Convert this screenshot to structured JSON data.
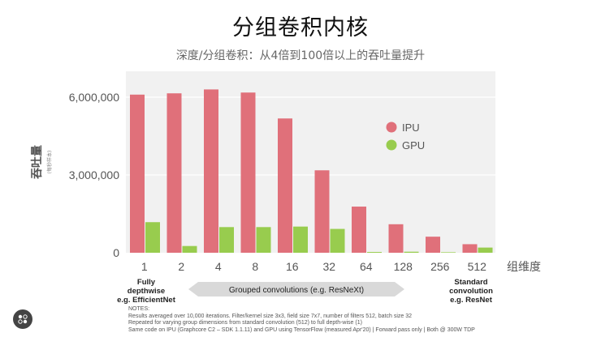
{
  "title": "分组卷积内核",
  "subtitle": "深度/分组卷积：从4倍到100倍以上的吞吐量提升",
  "chart_data": {
    "type": "bar",
    "categories": [
      "1",
      "2",
      "4",
      "8",
      "16",
      "32",
      "64",
      "128",
      "256",
      "512"
    ],
    "series": [
      {
        "name": "IPU",
        "values": [
          6100000,
          6150000,
          6300000,
          6180000,
          5180000,
          3180000,
          1780000,
          1100000,
          620000,
          330000
        ],
        "color": "#e0707a"
      },
      {
        "name": "GPU",
        "values": [
          1180000,
          260000,
          990000,
          990000,
          1010000,
          920000,
          30000,
          40000,
          20000,
          200000
        ],
        "color": "#98cc4e"
      }
    ],
    "ylim": [
      0,
      7000000
    ],
    "yticks": [
      0,
      3000000,
      6000000
    ],
    "ytick_labels": [
      "0",
      "3,000,000",
      "6,000,000"
    ],
    "ylabel": "吞吐量",
    "ylabel_unit": "(每秒样本)",
    "xlabel": "组维度",
    "legend_position": "right",
    "grid": true
  },
  "annotations": {
    "left": "Fully\ndepthwise\ne.g. EfficientNet",
    "middle": "Grouped convolutions (e.g. ResNeXt)",
    "right": "Standard\nconvolution\ne.g. ResNet"
  },
  "notes": [
    "NOTES:",
    "Results averaged over 10,000 iterations. Filter/kernel size 3x3, field size 7x7, number of filters 512, batch size 32",
    "Repeated for varying group dimensions from standard convolution (512) to full depth-wise (1)",
    "Same code on IPU (Graphcore C2 – SDK 1.1.11) and GPU using TensorFlow (measured Apr'20) | Forward pass only | Both @ 300W TDP"
  ],
  "colors": {
    "plot_bg": "#f1f1f1",
    "ipu": "#e0707a",
    "gpu": "#98cc4e"
  },
  "logo_icon": "graphcore-logo-icon"
}
